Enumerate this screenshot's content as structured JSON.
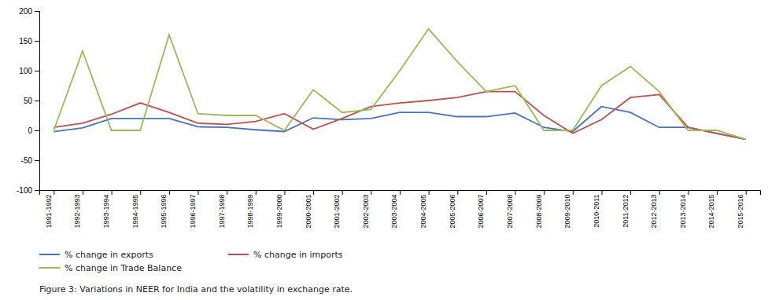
{
  "chart_data": {
    "type": "line",
    "caption": "Figure 3: Variations in NEER for India and the volatility in exchange rate.",
    "categories": [
      "1991-1992",
      "1992-1993",
      "1993-1994",
      "1994-1995",
      "1995-1996",
      "1996-1997",
      "1997-1998",
      "1998-1999",
      "1999-2000",
      "2000-2001",
      "2001-2002",
      "2002-2003",
      "2003-2004",
      "2004-2005",
      "2005-2006",
      "2006-2007",
      "2007-2008",
      "2008-2009",
      "2009-2010",
      "2010-2011",
      "2011-2012",
      "2012-2013",
      "2013-2014",
      "2014-2015",
      "2015-2016"
    ],
    "series": [
      {
        "name": "% change in exports",
        "color": "#4472c4",
        "values": [
          -2,
          4,
          20,
          20,
          20,
          6,
          5,
          1,
          -2,
          21,
          18,
          20,
          30,
          30,
          23,
          23,
          29,
          5,
          -2,
          40,
          30,
          5,
          5,
          -5,
          -15
        ]
      },
      {
        "name": "% change in imports",
        "color": "#c0504d",
        "values": [
          5,
          12,
          27,
          46,
          30,
          12,
          10,
          15,
          28,
          2,
          20,
          40,
          46,
          50,
          55,
          65,
          65,
          25,
          -5,
          18,
          55,
          60,
          5,
          -5,
          -15
        ]
      },
      {
        "name": "% change in Trade Balance",
        "color": "#9bbb59",
        "values": [
          0,
          133,
          0,
          0,
          160,
          28,
          25,
          25,
          0,
          68,
          30,
          35,
          100,
          170,
          115,
          65,
          75,
          0,
          0,
          75,
          107,
          65,
          0,
          0,
          -15
        ]
      }
    ],
    "ylim": [
      -100,
      200
    ],
    "yticks": [
      -100,
      -50,
      0,
      50,
      100,
      150,
      200
    ],
    "legend": "bottom"
  }
}
